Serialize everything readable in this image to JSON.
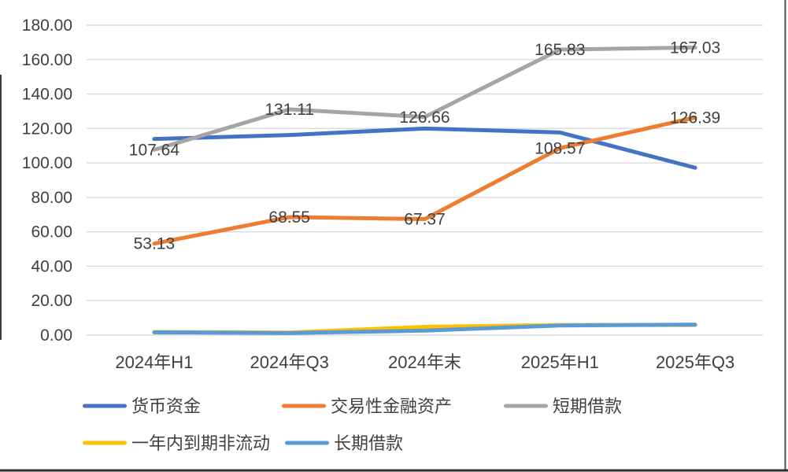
{
  "chart_data": {
    "type": "line",
    "title": "",
    "xlabel": "",
    "ylabel": "",
    "categories": [
      "2024年H1",
      "2024年Q3",
      "2024年末",
      "2025年H1",
      "2025年Q3"
    ],
    "series": [
      {
        "name": "货币资金",
        "color": "#4472C4",
        "labeled": false,
        "values": [
          113.9,
          116.2,
          120.0,
          117.7,
          97.2
        ]
      },
      {
        "name": "交易性金融资产",
        "color": "#ED7D31",
        "labeled": true,
        "values": [
          53.13,
          68.55,
          67.37,
          108.57,
          126.39
        ]
      },
      {
        "name": "短期借款",
        "color": "#A5A5A5",
        "labeled": true,
        "values": [
          107.64,
          131.11,
          126.66,
          165.83,
          167.03
        ]
      },
      {
        "name": "一年内到期非流动",
        "color": "#FFC000",
        "labeled": false,
        "values": [
          1.8,
          1.5,
          4.8,
          5.9,
          5.9
        ]
      },
      {
        "name": "长期借款",
        "color": "#5B9BD5",
        "labeled": false,
        "values": [
          1.6,
          1.2,
          2.6,
          5.6,
          6.1
        ]
      }
    ],
    "ylim": [
      0,
      180
    ],
    "ytick_step": 20,
    "ytick_labels": [
      "0.00",
      "20.00",
      "40.00",
      "60.00",
      "80.00",
      "100.00",
      "120.00",
      "140.00",
      "160.00",
      "180.00"
    ],
    "label_decimals": 2,
    "grid": true,
    "legend_position": "bottom",
    "colors": {
      "gridline": "#D9D9D9",
      "axis_text": "#404040",
      "data_label_text": "#404040",
      "legend_text": "#404040",
      "frame_right_line": "#3c5a46",
      "frame_bottom_line": "#2b2b2b",
      "frame_left_line": "#3a3a3a"
    }
  }
}
